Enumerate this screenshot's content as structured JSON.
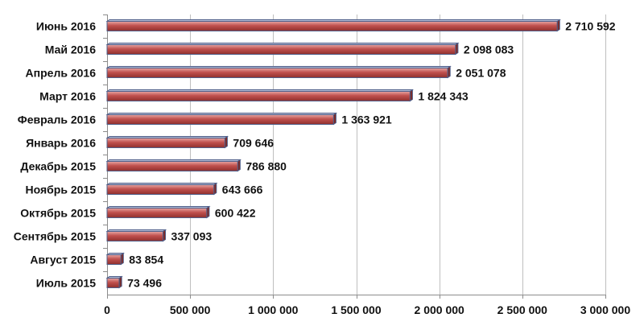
{
  "chart_data": {
    "type": "bar",
    "orientation": "horizontal",
    "title": "",
    "xlabel": "",
    "ylabel": "",
    "categories": [
      "Июнь 2016",
      "Май 2016",
      "Апрель 2016",
      "Март 2016",
      "Февраль 2016",
      "Январь 2016",
      "Декабрь 2015",
      "Ноябрь 2015",
      "Октябрь 2015",
      "Сентябрь 2015",
      "Август 2015",
      "Июль 2015"
    ],
    "values": [
      2710592,
      2098083,
      2051078,
      1824343,
      1363921,
      709646,
      786880,
      643666,
      600422,
      337093,
      83854,
      73496
    ],
    "value_labels": [
      "2 710 592",
      "2 098 083",
      "2 051 078",
      "1 824 343",
      "1 363 921",
      "709 646",
      "786 880",
      "643 666",
      "600 422",
      "337 093",
      "83 854",
      "73 496"
    ],
    "xlim": [
      0,
      3000000
    ],
    "x_ticks": [
      0,
      500000,
      1000000,
      1500000,
      2000000,
      2500000,
      3000000
    ],
    "x_tick_labels": [
      "0",
      "500 000",
      "1 000 000",
      "1 500 000",
      "2 000 000",
      "2 500 000",
      "3 000 000"
    ],
    "grid": true,
    "legend": "none",
    "colors": {
      "bar_fill": "#c0504d",
      "bar_highlight": "#dd8a88",
      "bar_outline": "#4f5f8a"
    }
  }
}
